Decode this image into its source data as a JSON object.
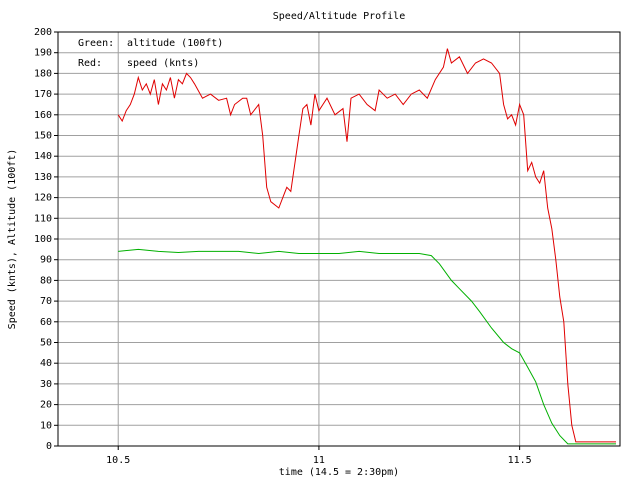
{
  "chart_data": {
    "type": "line",
    "title": "Speed/Altitude Profile",
    "xlabel": "time (14.5 = 2:30pm)",
    "ylabel": "Speed (knts), Altitude (100ft)",
    "xlim": [
      10.35,
      11.75
    ],
    "xticks": [
      10.5,
      11,
      11.5
    ],
    "ylim": [
      0,
      200
    ],
    "yticks": [
      0,
      10,
      20,
      30,
      40,
      50,
      60,
      70,
      80,
      90,
      100,
      110,
      120,
      130,
      140,
      150,
      160,
      170,
      180,
      190,
      200
    ],
    "grid": true,
    "series": [
      {
        "name": "altitude (100ft)",
        "legend_prefix": "Green:",
        "color": "#00b000",
        "x": [
          10.5,
          10.55,
          10.6,
          10.65,
          10.7,
          10.8,
          10.85,
          10.9,
          10.95,
          11.0,
          11.05,
          11.1,
          11.15,
          11.2,
          11.25,
          11.28,
          11.3,
          11.33,
          11.35,
          11.38,
          11.4,
          11.43,
          11.46,
          11.48,
          11.5,
          11.52,
          11.54,
          11.56,
          11.58,
          11.6,
          11.62,
          11.65,
          11.74
        ],
        "values": [
          94,
          95,
          94,
          93.5,
          94,
          94,
          93,
          94,
          93,
          93,
          93,
          94,
          93,
          93,
          93,
          92,
          88,
          80,
          76,
          70,
          65,
          57,
          50,
          47,
          45,
          38,
          31,
          20,
          11,
          5,
          1,
          1,
          1
        ]
      },
      {
        "name": "speed (knts)",
        "legend_prefix": "Red:",
        "color": "#e00000",
        "x": [
          10.5,
          10.51,
          10.52,
          10.53,
          10.54,
          10.55,
          10.56,
          10.57,
          10.58,
          10.59,
          10.6,
          10.61,
          10.62,
          10.63,
          10.64,
          10.65,
          10.66,
          10.67,
          10.68,
          10.69,
          10.71,
          10.73,
          10.75,
          10.77,
          10.78,
          10.79,
          10.81,
          10.82,
          10.83,
          10.85,
          10.86,
          10.87,
          10.88,
          10.9,
          10.91,
          10.92,
          10.93,
          10.95,
          10.96,
          10.97,
          10.98,
          10.99,
          11.0,
          11.01,
          11.02,
          11.04,
          11.06,
          11.07,
          11.08,
          11.1,
          11.12,
          11.14,
          11.15,
          11.17,
          11.19,
          11.21,
          11.23,
          11.25,
          11.27,
          11.29,
          11.31,
          11.32,
          11.33,
          11.35,
          11.37,
          11.39,
          11.41,
          11.43,
          11.45,
          11.46,
          11.47,
          11.48,
          11.49,
          11.5,
          11.51,
          11.52,
          11.53,
          11.54,
          11.55,
          11.56,
          11.57,
          11.58,
          11.59,
          11.6,
          11.61,
          11.62,
          11.63,
          11.64,
          11.66,
          11.7,
          11.74
        ],
        "values": [
          160,
          157,
          162,
          165,
          170,
          178,
          172,
          175,
          170,
          177,
          165,
          175,
          172,
          178,
          168,
          177,
          175,
          180,
          178,
          175,
          168,
          170,
          167,
          168,
          160,
          165,
          168,
          168,
          160,
          165,
          150,
          125,
          118,
          115,
          120,
          125,
          123,
          150,
          163,
          165,
          155,
          170,
          162,
          165,
          168,
          160,
          163,
          147,
          168,
          170,
          165,
          162,
          172,
          168,
          170,
          165,
          170,
          172,
          168,
          177,
          183,
          192,
          185,
          188,
          180,
          185,
          187,
          185,
          180,
          165,
          158,
          160,
          155,
          165,
          160,
          133,
          137,
          130,
          127,
          133,
          115,
          105,
          90,
          72,
          60,
          30,
          10,
          2,
          2,
          2,
          2
        ]
      }
    ]
  }
}
